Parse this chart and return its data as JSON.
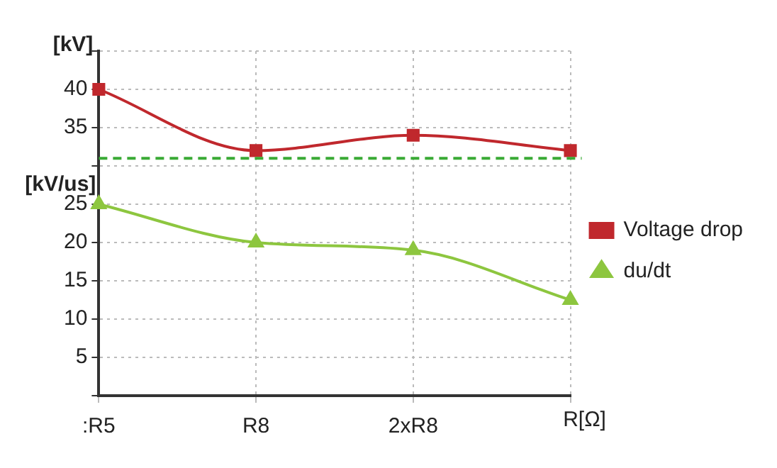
{
  "chart_data": {
    "type": "line",
    "categories": [
      ":R5",
      "R8",
      "2xR8",
      null
    ],
    "xlabel": "R[Ω]",
    "ylabel": "[kV]",
    "annotations": [
      "[kV/us]"
    ],
    "series": [
      {
        "name": "Voltage drop",
        "color": "#c0282d",
        "values": [
          40,
          32,
          34,
          32
        ],
        "marker": "square"
      },
      {
        "name": "du/dt",
        "color": "#8dc63f",
        "values": [
          25,
          20,
          19,
          12.5
        ],
        "marker": "triangle"
      }
    ],
    "ylim": [
      0,
      45
    ],
    "yticks": [
      {
        "value": 0,
        "label": null
      },
      5,
      10,
      15,
      20,
      25,
      {
        "value": 30,
        "label": null
      },
      35,
      40,
      {
        "value": 45,
        "label": null
      }
    ],
    "ref_lines": [
      {
        "axis": "y",
        "value": 31,
        "color": "#3aaa35",
        "line_style": "dashed"
      }
    ],
    "grid": true,
    "legend": "right",
    "line_style": "solid"
  }
}
